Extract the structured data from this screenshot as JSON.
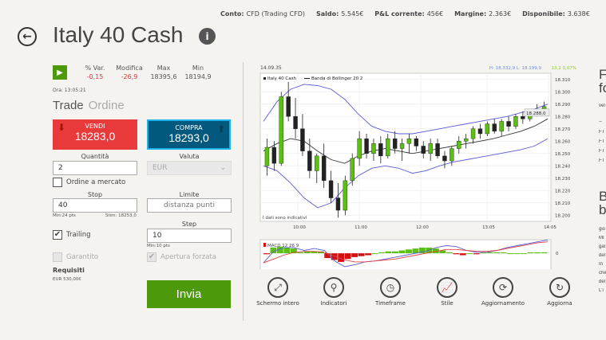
{
  "account": {
    "items": [
      {
        "k": "Conto:",
        "v": "CFD (Trading CFD)"
      },
      {
        "k": "Saldo:",
        "v": "5.545€"
      },
      {
        "k": "P&L corrente:",
        "v": "456€"
      },
      {
        "k": "Margine:",
        "v": "2.363€"
      },
      {
        "k": "Disponibile:",
        "v": "3.638€"
      }
    ]
  },
  "header": {
    "title": "Italy 40 Cash",
    "back_icon": "back-arrow-icon",
    "info_icon": "i"
  },
  "stats": [
    {
      "label": "% Var.",
      "value": "-0,15",
      "neg": true
    },
    {
      "label": "Modifica",
      "value": "-26,9",
      "neg": true
    },
    {
      "label": "Max",
      "value": "18395,6"
    },
    {
      "label": "Min",
      "value": "18194,9"
    }
  ],
  "time": "Ora: 13:05:21",
  "tabs": {
    "trade": "Trade",
    "order": "Ordine"
  },
  "sell": {
    "label": "VENDI",
    "price": "18283,0"
  },
  "buy": {
    "label": "COMPRA",
    "price": "18293,0"
  },
  "form": {
    "qty_label": "Quantità",
    "qty": "2",
    "currency_label": "Valuta",
    "currency": "EUR",
    "market_order": "Ordine a mercato",
    "stop_label": "Stop",
    "stop": "40",
    "stop_min": "Min:24 pts",
    "stop_est": "Stim: 18253,0",
    "limit_label": "Limite",
    "limit_placeholder": "distanza punti",
    "trailing": "Trailing",
    "step_label": "Step",
    "step": "10",
    "step_min": "Min:10 pts",
    "guaranteed": "Garantito",
    "forced": "Apertura forzata",
    "req_label": "Requisiti",
    "req_value": "EUR 530,00€",
    "submit": "Invia"
  },
  "chart_data": {
    "type": "candlestick",
    "date": "14.09.35",
    "hl": "H: 18.332,9  L: 18.199,9",
    "change": "13,2  0,07%",
    "legend": [
      "Italy 40 Cash",
      "Banda di Bollinger 20 2"
    ],
    "note": "I dati sono indicativi",
    "last_price": "18.288,0",
    "ylim": [
      18195,
      18315
    ],
    "yticks": [
      "18.310",
      "18.300",
      "18.290",
      "18.280",
      "18.270",
      "18.260",
      "18.250",
      "18.240",
      "18.230",
      "18.220",
      "18.210",
      "18.200"
    ],
    "xticks": [
      "10:00",
      "11:00",
      "12:00",
      "13:05",
      "14:05"
    ],
    "colors": {
      "up": "#5cbf14",
      "down": "#222222",
      "band": "#5b5bd6",
      "mid": "#333333",
      "macd": "#5b5bd6",
      "signal": "#e04040",
      "hist_pos": "#5cbf14",
      "hist_neg": "#d41010"
    },
    "candles": [
      [
        18240,
        18262,
        18232,
        18255
      ],
      [
        18255,
        18260,
        18236,
        18242
      ],
      [
        18242,
        18300,
        18240,
        18296
      ],
      [
        18296,
        18308,
        18276,
        18280
      ],
      [
        18280,
        18295,
        18262,
        18270
      ],
      [
        18270,
        18282,
        18248,
        18252
      ],
      [
        18252,
        18262,
        18230,
        18236
      ],
      [
        18236,
        18250,
        18226,
        18248
      ],
      [
        18248,
        18258,
        18222,
        18228
      ],
      [
        18228,
        18236,
        18210,
        18214
      ],
      [
        18214,
        18226,
        18198,
        18204
      ],
      [
        18204,
        18232,
        18200,
        18228
      ],
      [
        18228,
        18250,
        18224,
        18246
      ],
      [
        18246,
        18268,
        18240,
        18262
      ],
      [
        18262,
        18266,
        18246,
        18250
      ],
      [
        18250,
        18262,
        18244,
        18258
      ],
      [
        18258,
        18264,
        18242,
        18248
      ],
      [
        18248,
        18266,
        18246,
        18262
      ],
      [
        18262,
        18268,
        18250,
        18254
      ],
      [
        18254,
        18262,
        18244,
        18258
      ],
      [
        18258,
        18266,
        18250,
        18262
      ],
      [
        18262,
        18264,
        18252,
        18256
      ],
      [
        18256,
        18260,
        18246,
        18250
      ],
      [
        18250,
        18262,
        18244,
        18258
      ],
      [
        18258,
        18262,
        18246,
        18248
      ],
      [
        18248,
        18252,
        18238,
        18244
      ],
      [
        18244,
        18256,
        18240,
        18254
      ],
      [
        18254,
        18264,
        18250,
        18260
      ],
      [
        18260,
        18266,
        18254,
        18262
      ],
      [
        18262,
        18272,
        18258,
        18270
      ],
      [
        18270,
        18274,
        18262,
        18266
      ],
      [
        18266,
        18276,
        18264,
        18274
      ],
      [
        18274,
        18278,
        18266,
        18268
      ],
      [
        18268,
        18278,
        18264,
        18276
      ],
      [
        18276,
        18280,
        18268,
        18272
      ],
      [
        18272,
        18282,
        18270,
        18280
      ],
      [
        18280,
        18284,
        18274,
        18278
      ],
      [
        18278,
        18286,
        18276,
        18284
      ],
      [
        18284,
        18290,
        18280,
        18286
      ],
      [
        18286,
        18292,
        18282,
        18288
      ]
    ],
    "band_upper": [
      18276,
      18292,
      18302,
      18306,
      18305,
      18302,
      18294,
      18282,
      18272,
      18268,
      18266,
      18266,
      18268,
      18270,
      18272,
      18274,
      18276,
      18278,
      18280,
      18283,
      18286,
      18290
    ],
    "band_middle": [
      18252,
      18258,
      18262,
      18260,
      18252,
      18245,
      18242,
      18248,
      18252,
      18254,
      18252,
      18250,
      18252,
      18254,
      18256,
      18258,
      18260,
      18262,
      18265,
      18268,
      18272,
      18278
    ],
    "band_lower": [
      18240,
      18236,
      18226,
      18214,
      18206,
      18210,
      18222,
      18232,
      18238,
      18240,
      18238,
      18234,
      18236,
      18240,
      18243,
      18245,
      18247,
      18249,
      18251,
      18253,
      18256,
      18262
    ],
    "macd_label": "MACD 12 26 9",
    "macd_hist": [
      -1,
      6,
      7,
      6,
      5,
      1,
      2,
      2,
      2,
      -5,
      -7,
      -9,
      -6,
      -4,
      -3,
      -2,
      0,
      1,
      2,
      2,
      3,
      4,
      5,
      6,
      6,
      5,
      3,
      1,
      -1,
      -2,
      0,
      -1,
      1,
      1,
      1,
      1,
      0,
      0,
      0,
      1,
      1,
      1
    ],
    "macd_line": [
      -10,
      2,
      6,
      6,
      3,
      5,
      3,
      -8,
      -14,
      -12,
      -9,
      -8,
      -6,
      -4,
      -2,
      0,
      2,
      6,
      8,
      7,
      3,
      1,
      1,
      3,
      6,
      8,
      10,
      12,
      14
    ],
    "signal_line": [
      -10,
      -6,
      -2,
      1,
      2,
      2,
      1,
      -3,
      -7,
      -9,
      -9,
      -8,
      -7,
      -6,
      -4,
      -2,
      0,
      2,
      4,
      4,
      3,
      2,
      2,
      3,
      5,
      7,
      9,
      11,
      12
    ]
  },
  "toolbar": [
    {
      "label": "Schermo intero",
      "icon": "fullscreen-icon",
      "glyph": "⤢"
    },
    {
      "label": "Indicatori",
      "icon": "map-pin-icon",
      "glyph": "⚲"
    },
    {
      "label": "Timeframe",
      "icon": "stopwatch-icon",
      "glyph": "◷"
    },
    {
      "label": "Stile",
      "icon": "chart-style-icon",
      "glyph": "📈"
    },
    {
      "label": "Aggiornamento",
      "icon": "refresh-cycle-icon",
      "glyph": "⟳"
    },
    {
      "label": "Aggiorna",
      "icon": "refresh-icon",
      "glyph": "↻"
    }
  ],
  "right_panel": {
    "h1a": "Fl",
    "h1b": "fo",
    "sub": "ver",
    "dash": "--",
    "rows": [
      "FT",
      "FT",
      "FT",
      "FT"
    ],
    "h2a": "B",
    "h2b": "b",
    "body": [
      "gio",
      "MI",
      "gal",
      "del",
      "In",
      "che",
      "del",
      "L'i"
    ]
  }
}
